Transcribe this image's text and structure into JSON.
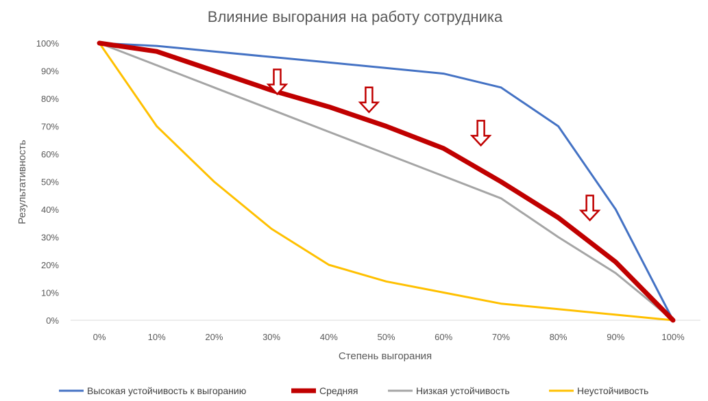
{
  "chart_data": {
    "type": "line",
    "title": "Влияние выгорания на работу сотрудника",
    "xlabel": "Степень выгорания",
    "ylabel": "Результативность",
    "x": [
      0,
      10,
      20,
      30,
      40,
      50,
      60,
      70,
      80,
      90,
      100
    ],
    "x_tick_labels": [
      "0%",
      "10%",
      "20%",
      "30%",
      "40%",
      "50%",
      "60%",
      "70%",
      "80%",
      "90%",
      "100%"
    ],
    "y_tick_labels": [
      "0%",
      "10%",
      "20%",
      "30%",
      "40%",
      "50%",
      "60%",
      "70%",
      "80%",
      "90%",
      "100%"
    ],
    "xlim": [
      0,
      100
    ],
    "ylim": [
      0,
      100
    ],
    "grid": false,
    "legend_position": "bottom",
    "series": [
      {
        "name": "Высокая устойчивость к выгоранию",
        "color": "#4472C4",
        "values": [
          100,
          99,
          97,
          95,
          93,
          91,
          89,
          84,
          70,
          40,
          0
        ]
      },
      {
        "name": "Средняя",
        "color": "#C00000",
        "values": [
          100,
          97,
          90,
          83,
          77,
          70,
          62,
          50,
          37,
          21,
          0
        ]
      },
      {
        "name": "Низкая устойчивость",
        "color": "#A5A5A5",
        "values": [
          100,
          92,
          84,
          76,
          68,
          60,
          52,
          44,
          30,
          17,
          0
        ]
      },
      {
        "name": "Неустойчивость",
        "color": "#FFC000",
        "values": [
          100,
          70,
          50,
          33,
          20,
          14,
          10,
          6,
          4,
          2,
          0
        ]
      }
    ],
    "annotations": [
      {
        "type": "down-arrow",
        "x": 31,
        "y": 90.5
      },
      {
        "type": "down-arrow",
        "x": 47,
        "y": 84
      },
      {
        "type": "down-arrow",
        "x": 66.5,
        "y": 72
      },
      {
        "type": "down-arrow",
        "x": 85.5,
        "y": 45
      }
    ]
  }
}
